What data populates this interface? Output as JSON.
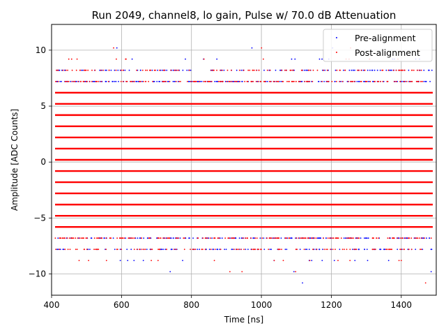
{
  "chart_data": {
    "type": "scatter",
    "title": "Run 2049, channel8, lo gain, Pulse w/ 70.0 dB Attenuation",
    "xlabel": "Time [ns]",
    "ylabel": "Amplitude [ADC Counts]",
    "xlim": [
      400,
      1500
    ],
    "ylim": [
      -11.9,
      12.3
    ],
    "xticks": [
      400,
      600,
      800,
      1000,
      1200,
      1400
    ],
    "yticks": [
      -10,
      -5,
      0,
      5,
      10
    ],
    "xtick_labels": [
      "400",
      "600",
      "800",
      "1000",
      "1200",
      "1400"
    ],
    "ytick_labels": [
      "−10",
      "−5",
      "0",
      "5",
      "10"
    ],
    "grid": true,
    "legend_position": "top-right",
    "series": [
      {
        "name": "Pre-alignment",
        "color": "#0000ff",
        "marker": "dot",
        "levels": [
          -10.8,
          -9.8,
          -8.8,
          -7.8,
          -6.8,
          -5.8,
          -4.8,
          -3.8,
          -2.8,
          -1.8,
          -0.8,
          0.2,
          1.2,
          2.2,
          3.2,
          4.2,
          5.2,
          6.2,
          7.2,
          8.2,
          9.2,
          10.2
        ]
      },
      {
        "name": "Post-alignment",
        "color": "#ff0000",
        "marker": "dot",
        "levels": [
          -10.8,
          -9.8,
          -8.8,
          -7.8,
          -6.8,
          -5.8,
          -4.8,
          -3.8,
          -2.8,
          -1.8,
          -0.8,
          0.2,
          1.2,
          2.2,
          3.2,
          4.2,
          5.2,
          6.2,
          7.2,
          8.2,
          9.2,
          10.2
        ]
      }
    ],
    "density_by_level": {
      "-10.8": 0.004,
      "-9.8": 0.012,
      "-8.8": 0.05,
      "-7.8": 0.42,
      "-6.8": 0.7,
      "-5.8": 1.0,
      "-4.8": 1.0,
      "-3.8": 1.0,
      "-2.8": 1.0,
      "-1.8": 1.0,
      "-0.8": 1.0,
      "0.2": 1.0,
      "1.2": 1.0,
      "2.2": 1.0,
      "3.2": 1.0,
      "4.2": 1.0,
      "5.2": 1.0,
      "6.2": 0.97,
      "7.2": 0.72,
      "8.2": 0.42,
      "9.2": 0.05,
      "10.2": 0.012
    }
  }
}
